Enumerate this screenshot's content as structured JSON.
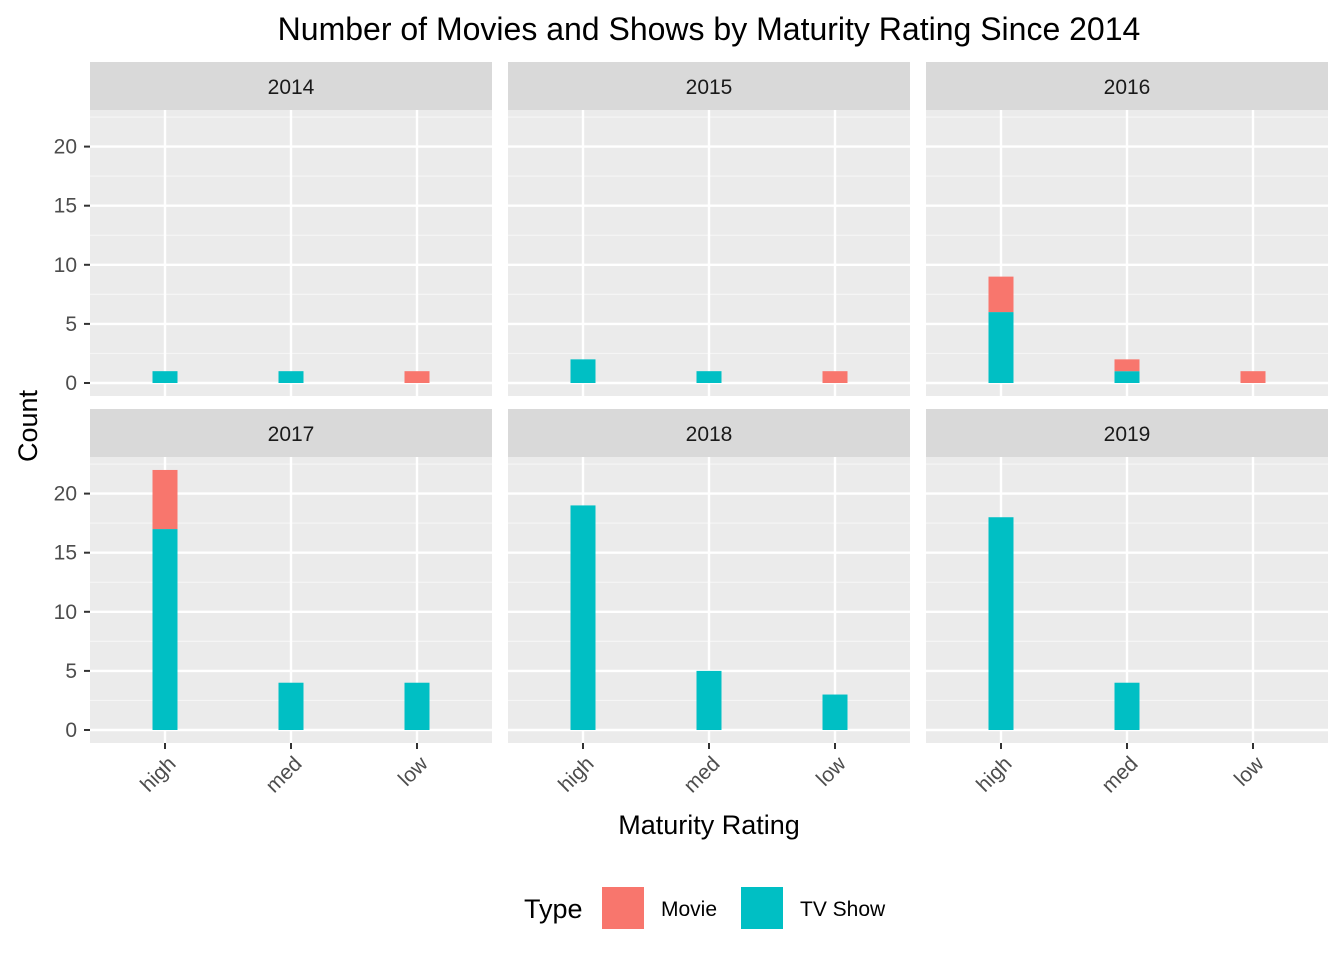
{
  "chart_data": {
    "type": "bar",
    "stacked": true,
    "faceted": true,
    "title": "Number of Movies and Shows by Maturity Rating Since 2014",
    "xlabel": "Maturity Rating",
    "ylabel": "Count",
    "categories": [
      "high",
      "med",
      "low"
    ],
    "ylim": [
      0,
      23
    ],
    "yticks": [
      0,
      5,
      10,
      15,
      20
    ],
    "grid": true,
    "legend": {
      "title": "Type",
      "position": "bottom",
      "entries": [
        {
          "name": "Movie",
          "color": "#F8766D"
        },
        {
          "name": "TV Show",
          "color": "#00BFC4"
        }
      ]
    },
    "facets": [
      {
        "label": "2014",
        "series": [
          {
            "name": "TV Show",
            "values": [
              1,
              1,
              0
            ]
          },
          {
            "name": "Movie",
            "values": [
              0,
              0,
              1
            ]
          }
        ]
      },
      {
        "label": "2015",
        "series": [
          {
            "name": "TV Show",
            "values": [
              2,
              1,
              0
            ]
          },
          {
            "name": "Movie",
            "values": [
              0,
              0,
              1
            ]
          }
        ]
      },
      {
        "label": "2016",
        "series": [
          {
            "name": "TV Show",
            "values": [
              6,
              1,
              0
            ]
          },
          {
            "name": "Movie",
            "values": [
              3,
              1,
              1
            ]
          }
        ]
      },
      {
        "label": "2017",
        "series": [
          {
            "name": "TV Show",
            "values": [
              17,
              4,
              4
            ]
          },
          {
            "name": "Movie",
            "values": [
              5,
              0,
              0
            ]
          }
        ]
      },
      {
        "label": "2018",
        "series": [
          {
            "name": "TV Show",
            "values": [
              19,
              5,
              3
            ]
          },
          {
            "name": "Movie",
            "values": [
              0,
              0,
              0
            ]
          }
        ]
      },
      {
        "label": "2019",
        "series": [
          {
            "name": "TV Show",
            "values": [
              18,
              4,
              0
            ]
          },
          {
            "name": "Movie",
            "values": [
              0,
              0,
              0
            ]
          }
        ]
      }
    ]
  }
}
